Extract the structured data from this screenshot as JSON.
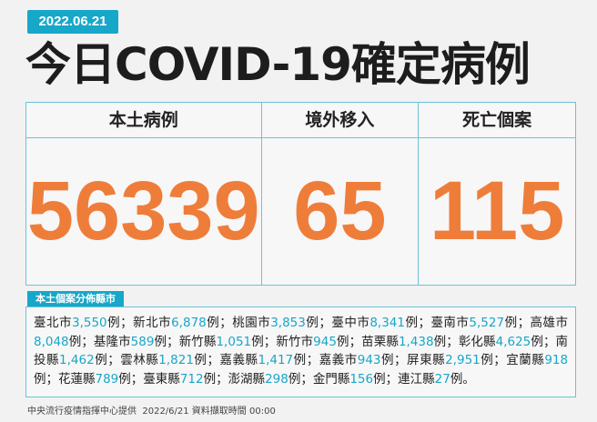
{
  "header": {
    "date": "2022.06.21",
    "title": "今日COVID-19確定病例"
  },
  "table": {
    "columns": [
      {
        "label": "本土病例",
        "value": "56339"
      },
      {
        "label": "境外移入",
        "value": "65"
      },
      {
        "label": "死亡個案",
        "value": "115"
      }
    ]
  },
  "distribution": {
    "label": "本土個案分佈縣市",
    "unit": "例",
    "separator": "；",
    "end": "。",
    "items": [
      {
        "name": "臺北市",
        "count": "3,550"
      },
      {
        "name": "新北市",
        "count": "6,878"
      },
      {
        "name": "桃園市",
        "count": "3,853"
      },
      {
        "name": "臺中市",
        "count": "8,341"
      },
      {
        "name": "臺南市",
        "count": "5,527"
      },
      {
        "name": "高雄市",
        "count": "8,048"
      },
      {
        "name": "基隆市",
        "count": "589"
      },
      {
        "name": "新竹縣",
        "count": "1,051"
      },
      {
        "name": "新竹市",
        "count": "945"
      },
      {
        "name": "苗栗縣",
        "count": "1,438"
      },
      {
        "name": "彰化縣",
        "count": "4,625"
      },
      {
        "name": "南投縣",
        "count": "1,462"
      },
      {
        "name": "雲林縣",
        "count": "1,821"
      },
      {
        "name": "嘉義縣",
        "count": "1,417"
      },
      {
        "name": "嘉義市",
        "count": "943"
      },
      {
        "name": "屏東縣",
        "count": "2,951"
      },
      {
        "name": "宜蘭縣",
        "count": "918"
      },
      {
        "name": "花蓮縣",
        "count": "789"
      },
      {
        "name": "臺東縣",
        "count": "712"
      },
      {
        "name": "澎湖縣",
        "count": "298"
      },
      {
        "name": "金門縣",
        "count": "156"
      },
      {
        "name": "連江縣",
        "count": "27"
      }
    ]
  },
  "footer": {
    "source": "中央流行疫情指揮中心提供  2022/6/21 資料擷取時間 00:00"
  }
}
